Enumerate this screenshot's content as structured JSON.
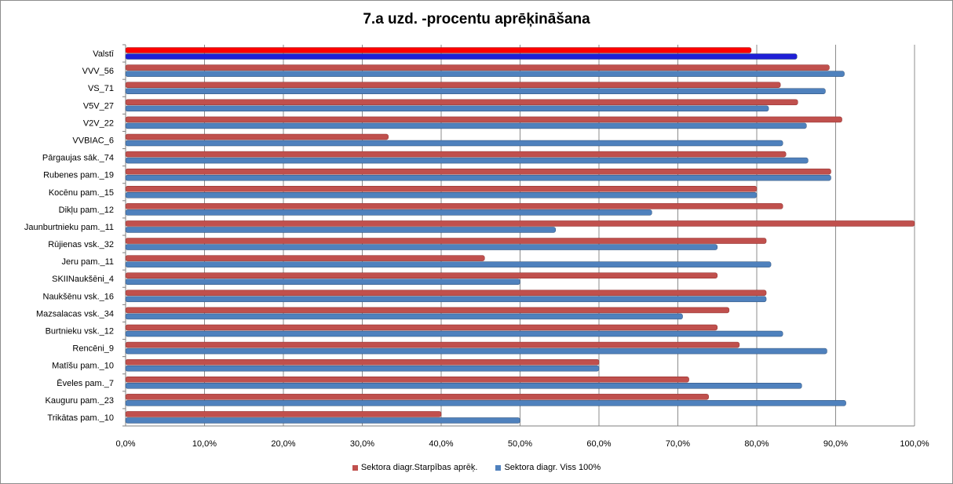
{
  "colors": {
    "red": "#c0504d",
    "red_dark": "#8c2a28",
    "blue": "#4f81bd",
    "blue_dark": "#2c4d75",
    "highlight_red": "#ff0000",
    "highlight_blue": "#1f1fd6",
    "grid": "#8c8c8c"
  },
  "chart_data": {
    "type": "bar",
    "orientation": "horizontal",
    "title": "7.a uzd. -procentu aprēķināšana",
    "xlim": [
      0,
      100
    ],
    "x_ticks": [
      "0,0%",
      "10,0%",
      "20,0%",
      "30,0%",
      "40,0%",
      "50,0%",
      "60,0%",
      "70,0%",
      "80,0%",
      "90,0%",
      "100,0%"
    ],
    "grid": "vertical",
    "legend_position": "bottom",
    "highlight_category": "Valstī",
    "categories": [
      "Valstī",
      "VVV_56",
      "VS_71",
      "V5V_27",
      "V2V_22",
      "VVBIAC_6",
      "Pārgaujas sāk._74",
      "Rubenes pam._19",
      "Kocēnu pam._15",
      "Dikļu pam._12",
      "Jaunburtnieku pam._11",
      "Rūjienas vsk._32",
      "Jeru pam._11",
      "SKIINaukšēni_4",
      "Naukšēnu vsk._16",
      "Mazsalacas vsk._34",
      "Burtnieku vsk._12",
      "Rencēni_9",
      "Matīšu pam._10",
      "Ēveles pam._7",
      "Kauguru pam._23",
      "Trikātas pam._10"
    ],
    "series": [
      {
        "name": "Sektora diagr.Starpības aprēķ.",
        "values": [
          79.3,
          89.2,
          83.0,
          85.2,
          90.8,
          33.3,
          83.7,
          89.4,
          80.0,
          83.3,
          100.0,
          81.2,
          45.5,
          75.0,
          81.2,
          76.5,
          75.0,
          77.8,
          60.0,
          71.4,
          73.9,
          40.0
        ]
      },
      {
        "name": "Sektora diagr. Viss 100%",
        "values": [
          85.1,
          91.1,
          88.7,
          81.5,
          86.3,
          83.3,
          86.5,
          89.4,
          80.0,
          66.7,
          54.5,
          75.0,
          81.8,
          50.0,
          81.2,
          70.6,
          83.3,
          88.9,
          60.0,
          85.7,
          91.3,
          50.0
        ]
      }
    ]
  }
}
